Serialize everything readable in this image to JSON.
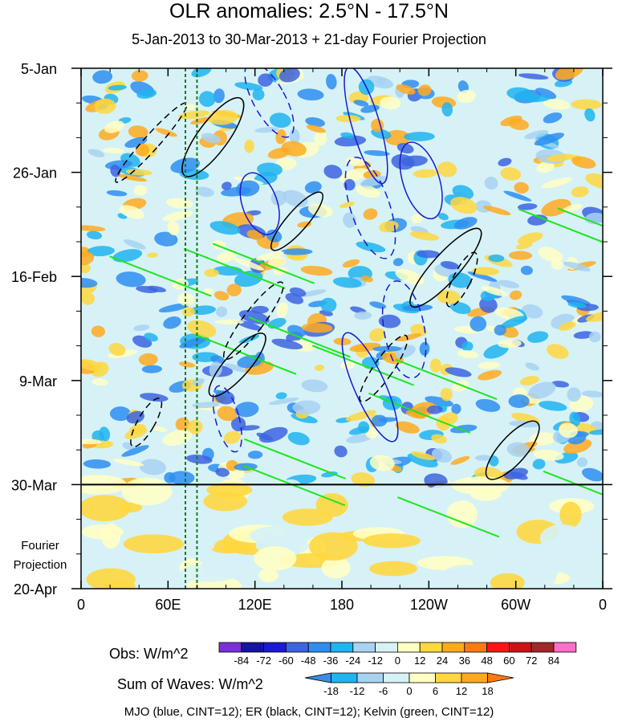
{
  "chart_data": {
    "type": "heatmap",
    "title": "OLR anomalies: 2.5°N - 17.5°N",
    "subtitle": "5-Jan-2013 to 30-Mar-2013 + 21-day Fourier Projection",
    "x_tick_labels": [
      "0",
      "60E",
      "120E",
      "180",
      "120W",
      "60W",
      "0"
    ],
    "x_ticks_deg_east": [
      0,
      60,
      120,
      180,
      240,
      300,
      360
    ],
    "y_tick_labels": [
      "5-Jan",
      "26-Jan",
      "16-Feb",
      "9-Mar",
      "30-Mar",
      "20-Apr"
    ],
    "y_ticks_days": [
      0,
      21,
      42,
      63,
      84,
      105
    ],
    "projection_label": [
      "Fourier",
      "Projection"
    ],
    "obs_colorbar": {
      "label": "Obs: W/m^2",
      "levels": [
        "-84",
        "-72",
        "-60",
        "-48",
        "-36",
        "-24",
        "-12",
        "0",
        "12",
        "24",
        "36",
        "48",
        "60",
        "72",
        "84"
      ],
      "colors": [
        "#7a2fd9",
        "#1414a0",
        "#1a1ad0",
        "#3c64e0",
        "#2e8ef0",
        "#20b4f0",
        "#a8d2f2",
        "#d6f2f7",
        "#ffffc4",
        "#ffd740",
        "#ffaa1e",
        "#ff7a14",
        "#ff1414",
        "#c81414",
        "#a02828",
        "#ff6ec8"
      ]
    },
    "waves_colorbar": {
      "label": "Sum of Waves: W/m^2",
      "levels": [
        "-18",
        "-12",
        "-6",
        "0",
        "6",
        "12",
        "18"
      ],
      "colors": [
        "#3c8ce6",
        "#20b4f0",
        "#a8d2f2",
        "#d6f2f7",
        "#ffffc4",
        "#ffd740",
        "#ffaa1e",
        "#ff7a14"
      ]
    },
    "contours_legend": "MJO (blue, CINT=12); ER (black, CINT=12); Kelvin (green, CINT=12)",
    "contour_colors": {
      "MJO": "#1a1ad0",
      "ER": "#000000",
      "Kelvin": "#1ee61e"
    },
    "vertical_dashed_lines_deg_east": [
      72,
      80
    ],
    "projection_divider_day": 84
  }
}
